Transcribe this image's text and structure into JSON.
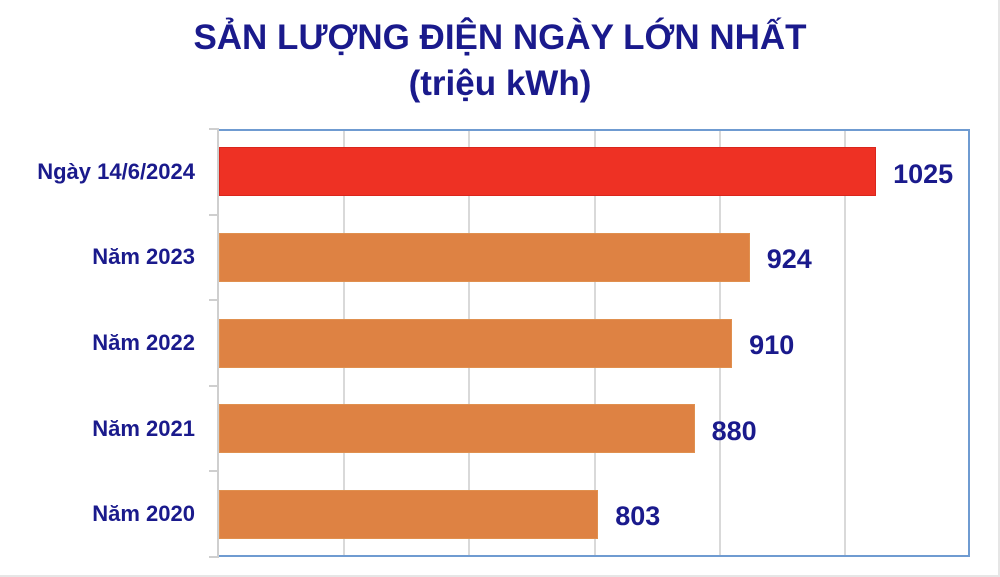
{
  "title": {
    "line1": "SẢN LƯỢNG ĐIỆN NGÀY LỚN NHẤT",
    "line2": "(triệu kWh)"
  },
  "colors": {
    "title": "#1a1a8c",
    "highlight_bar": "#ee3124",
    "bar": "#de8243",
    "plot_border": "#6f9bd1",
    "gridline": "#d9d9d9"
  },
  "chart_data": {
    "type": "bar",
    "orientation": "horizontal",
    "title": "SẢN LƯỢNG ĐIỆN NGÀY LỚN NHẤT (triệu kWh)",
    "xlabel": "",
    "ylabel": "",
    "categories": [
      "Ngày 14/6/2024",
      "Năm 2023",
      "Năm 2022",
      "Năm 2021",
      "Năm 2020"
    ],
    "values": [
      1025,
      924,
      910,
      880,
      803
    ],
    "data_labels": [
      "1025",
      "924",
      "910",
      "880",
      "803"
    ],
    "bar_colors": [
      "#ee3124",
      "#de8243",
      "#de8243",
      "#de8243",
      "#de8243"
    ],
    "xlim": [
      500,
      1100
    ],
    "grid": true,
    "grid_step": 100,
    "tick_labels_shown": false,
    "legend": null
  }
}
